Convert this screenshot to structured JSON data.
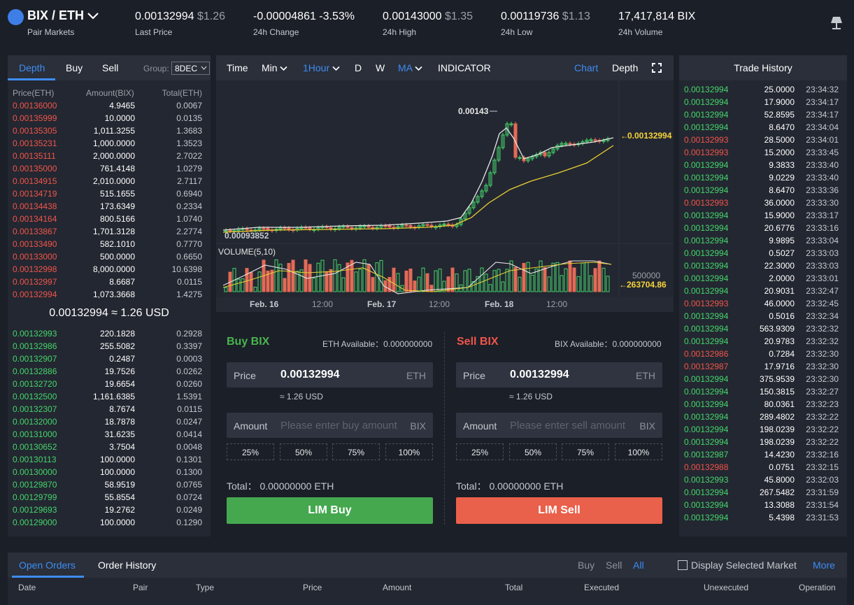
{
  "header": {
    "pair": "BIX / ETH",
    "pair_sub": "Pair Markets",
    "stats": [
      {
        "value": "0.00132994",
        "usd": "$1.26",
        "label": "Last Price",
        "color": "#ffffff"
      },
      {
        "value": "-0.00004861 -3.53%",
        "usd": "",
        "label": "24h Change",
        "color": "#f0554a"
      },
      {
        "value": "0.00143000",
        "usd": "$1.35",
        "label": "24h High",
        "color": "#ffffff"
      },
      {
        "value": "0.00119736",
        "usd": "$1.13",
        "label": "24h Low",
        "color": "#ffffff"
      },
      {
        "value": "17,417,814 BIX",
        "usd": "",
        "label": "24h Volume",
        "color": "#ffffff"
      }
    ]
  },
  "orderbook": {
    "tabs": [
      "Depth",
      "Buy",
      "Sell"
    ],
    "group_label": "Group:",
    "group_value": "8DEC",
    "headers": [
      "Price(ETH)",
      "Amount(BIX)",
      "Total(ETH)"
    ],
    "asks": [
      [
        "0.00136000",
        "4.9465",
        "0.0067"
      ],
      [
        "0.00135999",
        "10.0000",
        "0.0135"
      ],
      [
        "0.00135305",
        "1,011.3255",
        "1.3683"
      ],
      [
        "0.00135231",
        "1,000.0000",
        "1.3523"
      ],
      [
        "0.00135111",
        "2,000.0000",
        "2.7022"
      ],
      [
        "0.00135000",
        "761.4148",
        "1.0279"
      ],
      [
        "0.00134915",
        "2,010.0000",
        "2.7117"
      ],
      [
        "0.00134719",
        "515.1655",
        "0.6940"
      ],
      [
        "0.00134438",
        "173.6349",
        "0.2334"
      ],
      [
        "0.00134164",
        "800.5166",
        "1.0740"
      ],
      [
        "0.00133867",
        "1,701.3128",
        "2.2774"
      ],
      [
        "0.00133490",
        "582.1010",
        "0.7770"
      ],
      [
        "0.00133000",
        "500.0000",
        "0.6650"
      ],
      [
        "0.00132998",
        "8,000.0000",
        "10.6398"
      ],
      [
        "0.00132997",
        "8.6687",
        "0.0115"
      ],
      [
        "0.00132994",
        "1,073.3668",
        "1.4275"
      ]
    ],
    "mid": "0.00132994 ≈ 1.26 USD",
    "bids": [
      [
        "0.00132993",
        "220.1828",
        "0.2928"
      ],
      [
        "0.00132986",
        "255.5082",
        "0.3397"
      ],
      [
        "0.00132907",
        "0.2487",
        "0.0003"
      ],
      [
        "0.00132886",
        "19.7526",
        "0.0262"
      ],
      [
        "0.00132720",
        "19.6654",
        "0.0260"
      ],
      [
        "0.00132500",
        "1,161.6385",
        "1.5391"
      ],
      [
        "0.00132307",
        "8.7674",
        "0.0115"
      ],
      [
        "0.00132000",
        "18.7878",
        "0.0247"
      ],
      [
        "0.00131000",
        "31.6235",
        "0.0414"
      ],
      [
        "0.00130652",
        "3.7504",
        "0.0048"
      ],
      [
        "0.00130113",
        "100.0000",
        "0.1301"
      ],
      [
        "0.00130000",
        "100.0000",
        "0.1300"
      ],
      [
        "0.00129870",
        "58.9519",
        "0.0765"
      ],
      [
        "0.00129799",
        "55.8554",
        "0.0724"
      ],
      [
        "0.00129693",
        "19.2762",
        "0.0249"
      ],
      [
        "0.00129000",
        "100.0000",
        "0.1290"
      ]
    ]
  },
  "chart": {
    "toolbar": [
      "Time",
      "Min",
      "1Hour",
      "D",
      "W",
      "MA",
      "INDICATOR"
    ],
    "chart_tab": "Chart",
    "depth_tab": "Depth",
    "high_label": "0.00143",
    "low_label": "0.00093852",
    "last_label": "0.00132994",
    "volume_title": "VOLUME(5,10)",
    "volume_axis": "500000",
    "volume_last": "263704.86",
    "x_labels": [
      "Feb. 16",
      "12:00",
      "Feb. 17",
      "12:00",
      "Feb. 18",
      "12:00"
    ]
  },
  "buy": {
    "title": "Buy BIX",
    "available": "ETH Available：0.000000000",
    "price_label": "Price",
    "price": "0.00132994",
    "unit": "ETH",
    "usd": "≈ 1.26 USD",
    "amount_label": "Amount",
    "amount_placeholder": "Please enter buy amount",
    "amount_unit": "BIX",
    "percents": [
      "25%",
      "50%",
      "75%",
      "100%"
    ],
    "total": "Total：  0.00000000 ETH",
    "button": "LIM Buy"
  },
  "sell": {
    "title": "Sell BIX",
    "available": "BIX Available：0.000000000",
    "price_label": "Price",
    "price": "0.00132994",
    "unit": "ETH",
    "usd": "≈ 1.26 USD",
    "amount_label": "Amount",
    "amount_placeholder": "Please enter sell amount",
    "amount_unit": "BIX",
    "percents": [
      "25%",
      "50%",
      "75%",
      "100%"
    ],
    "total": "Total：  0.00000000 ETH",
    "button": "LIM Sell"
  },
  "trade_history": {
    "title": "Trade History",
    "rows": [
      [
        "0.00132994",
        "25.0000",
        "23:34:32",
        "buy"
      ],
      [
        "0.00132994",
        "17.9000",
        "23:34:17",
        "buy"
      ],
      [
        "0.00132994",
        "52.8595",
        "23:34:17",
        "buy"
      ],
      [
        "0.00132994",
        "8.6470",
        "23:34:04",
        "buy"
      ],
      [
        "0.00132993",
        "28.5000",
        "23:34:01",
        "sell"
      ],
      [
        "0.00132993",
        "15.2000",
        "23:33:45",
        "sell"
      ],
      [
        "0.00132994",
        "9.3833",
        "23:33:40",
        "buy"
      ],
      [
        "0.00132994",
        "9.0229",
        "23:33:40",
        "buy"
      ],
      [
        "0.00132994",
        "8.6470",
        "23:33:36",
        "buy"
      ],
      [
        "0.00132993",
        "36.0000",
        "23:33:30",
        "sell"
      ],
      [
        "0.00132994",
        "15.9000",
        "23:33:17",
        "buy"
      ],
      [
        "0.00132994",
        "20.6776",
        "23:33:16",
        "buy"
      ],
      [
        "0.00132994",
        "9.9895",
        "23:33:04",
        "buy"
      ],
      [
        "0.00132994",
        "0.5027",
        "23:33:03",
        "buy"
      ],
      [
        "0.00132994",
        "22.3000",
        "23:33:03",
        "buy"
      ],
      [
        "0.00132994",
        "2.0000",
        "23:33:01",
        "buy"
      ],
      [
        "0.00132994",
        "20.9031",
        "23:32:47",
        "buy"
      ],
      [
        "0.00132993",
        "46.0000",
        "23:32:45",
        "sell"
      ],
      [
        "0.00132994",
        "0.5016",
        "23:32:34",
        "buy"
      ],
      [
        "0.00132994",
        "563.9309",
        "23:32:32",
        "buy"
      ],
      [
        "0.00132994",
        "20.9783",
        "23:32:32",
        "buy"
      ],
      [
        "0.00132986",
        "0.7284",
        "23:32:30",
        "sell"
      ],
      [
        "0.00132987",
        "17.9716",
        "23:32:30",
        "sell"
      ],
      [
        "0.00132994",
        "375.9539",
        "23:32:30",
        "buy"
      ],
      [
        "0.00132994",
        "150.3815",
        "23:32:27",
        "buy"
      ],
      [
        "0.00132994",
        "80.0361",
        "23:32:23",
        "buy"
      ],
      [
        "0.00132994",
        "289.4802",
        "23:32:22",
        "buy"
      ],
      [
        "0.00132994",
        "198.0239",
        "23:32:22",
        "buy"
      ],
      [
        "0.00132994",
        "198.0239",
        "23:32:22",
        "buy"
      ],
      [
        "0.00132987",
        "14.4230",
        "23:32:16",
        "buy"
      ],
      [
        "0.00132988",
        "0.0751",
        "23:32:15",
        "sell"
      ],
      [
        "0.00132993",
        "45.8000",
        "23:32:03",
        "buy"
      ],
      [
        "0.00132994",
        "267.5482",
        "23:31:59",
        "buy"
      ],
      [
        "0.00132994",
        "13.3088",
        "23:31:54",
        "buy"
      ],
      [
        "0.00132994",
        "5.4398",
        "23:31:53",
        "buy"
      ]
    ]
  },
  "orders": {
    "tabs": [
      "Open Orders",
      "Order History"
    ],
    "filters": [
      "Buy",
      "Sell",
      "All"
    ],
    "display_selected": "Display Selected Market",
    "more": "More",
    "columns": [
      "Date",
      "Pair",
      "Type",
      "Price",
      "Amount",
      "Total",
      "Executed",
      "Unexecuted",
      "Operation"
    ]
  },
  "colors": {
    "buy": "#45d66b",
    "sell": "#f0554a",
    "accent": "#3f8cf2",
    "buy_button": "#45a84f",
    "sell_button": "#e9604b"
  }
}
